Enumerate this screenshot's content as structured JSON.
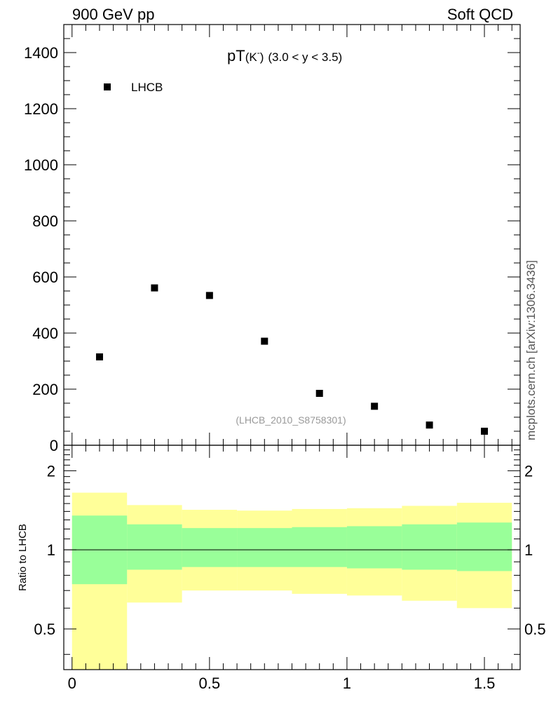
{
  "header": {
    "left": "900 GeV pp",
    "right": "Soft QCD",
    "side_text": "mcplots.cern.ch [arXiv:1306.3436]"
  },
  "chart_data": [
    {
      "type": "scatter",
      "title_main": "pT",
      "title_particle": "(K",
      "title_sup": "-",
      "title_close": ")",
      "title_range": "(3.0 < y < 3.5)",
      "annotation": "(LHCB_2010_S8758301)",
      "legend_position": "top-left",
      "series": [
        {
          "name": "LHCB",
          "marker": "square",
          "color": "#000000",
          "x": [
            0.1,
            0.3,
            0.5,
            0.7,
            0.9,
            1.1,
            1.3,
            1.5
          ],
          "y": [
            315,
            561,
            534,
            371,
            185,
            139,
            72,
            50
          ]
        }
      ],
      "xlim": [
        -0.03,
        1.63
      ],
      "ylim": [
        0,
        1500
      ],
      "yticks": [
        0,
        200,
        400,
        600,
        800,
        1000,
        1200,
        1400
      ],
      "ytick_labels": [
        "0",
        "200",
        "400",
        "600",
        "800",
        "1000",
        "1200",
        "1400"
      ]
    },
    {
      "type": "area",
      "ylabel": "Ratio to LHCB",
      "yscale": "log",
      "ylim": [
        0.35,
        2.5
      ],
      "xlim": [
        -0.03,
        1.63
      ],
      "reference_line": 1,
      "bins": [
        0,
        0.2,
        0.4,
        0.6,
        0.8,
        1.0,
        1.2,
        1.4,
        1.6
      ],
      "bands": [
        {
          "name": "outer",
          "color": "#ffff99",
          "low": [
            0.35,
            0.63,
            0.7,
            0.7,
            0.68,
            0.67,
            0.64,
            0.6
          ],
          "high": [
            1.65,
            1.48,
            1.42,
            1.41,
            1.43,
            1.44,
            1.47,
            1.51
          ]
        },
        {
          "name": "inner",
          "color": "#99ff99",
          "low": [
            0.74,
            0.84,
            0.86,
            0.86,
            0.86,
            0.85,
            0.84,
            0.83
          ],
          "high": [
            1.35,
            1.25,
            1.21,
            1.21,
            1.22,
            1.23,
            1.25,
            1.27
          ]
        }
      ],
      "yticks": [
        0.5,
        1,
        2
      ],
      "ytick_labels": [
        "0.5",
        "1",
        "2"
      ],
      "xticks": [
        0,
        0.5,
        1,
        1.5
      ],
      "xtick_labels": [
        "0",
        "0.5",
        "1",
        "1.5"
      ]
    }
  ]
}
